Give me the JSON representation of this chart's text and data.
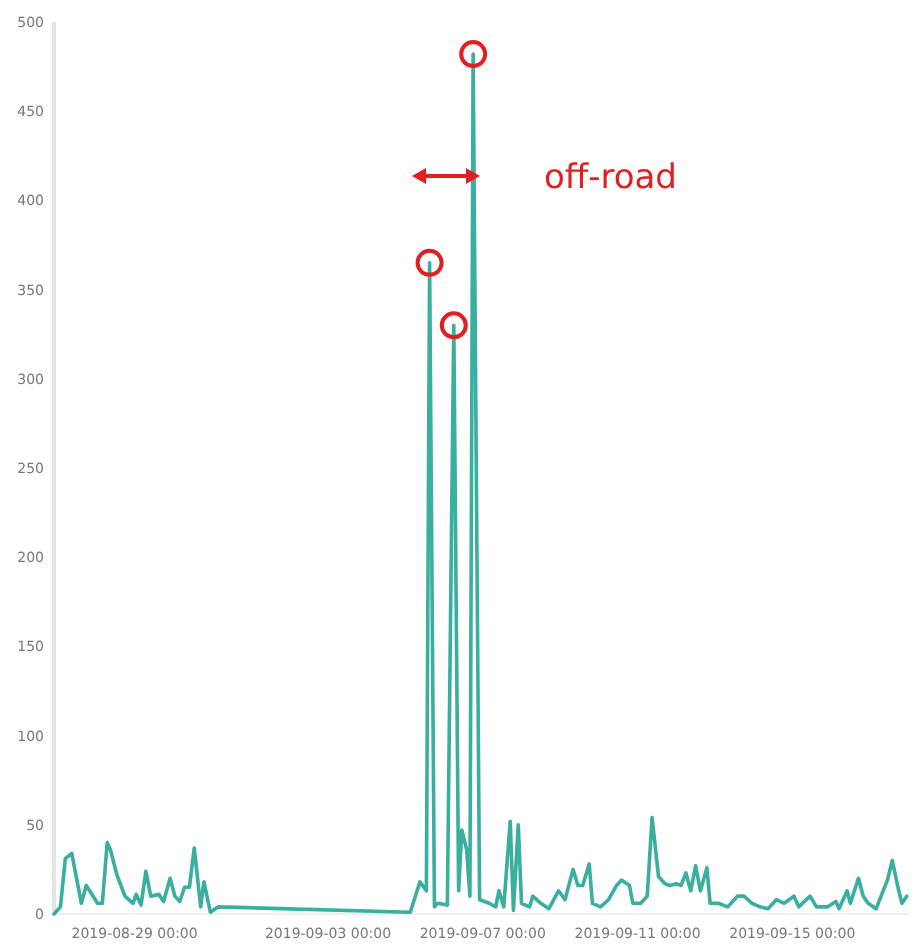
{
  "chart_data": {
    "type": "line",
    "x": [
      "2019-08-26T22:00",
      "2019-08-27T02:00",
      "2019-08-27T05:00",
      "2019-08-27T09:00",
      "2019-08-27T15:00",
      "2019-08-27T18:00",
      "2019-08-28T01:00",
      "2019-08-28T04:00",
      "2019-08-28T07:00",
      "2019-08-28T09:00",
      "2019-08-28T13:00",
      "2019-08-28T18:00",
      "2019-08-28T23:00",
      "2019-08-29T01:00",
      "2019-08-29T04:00",
      "2019-08-29T07:00",
      "2019-08-29T10:00",
      "2019-08-29T15:00",
      "2019-08-29T18:00",
      "2019-08-29T22:00",
      "2019-08-30T01:00",
      "2019-08-30T04:00",
      "2019-08-30T07:00",
      "2019-08-30T10:00",
      "2019-08-30T13:00",
      "2019-08-30T17:00",
      "2019-08-30T19:00",
      "2019-08-30T23:00",
      "2019-08-31T04:00",
      "2019-09-05T03:00",
      "2019-09-05T09:00",
      "2019-09-05T13:00",
      "2019-09-05T15:00",
      "2019-09-05T18:00",
      "2019-09-05T20:00",
      "2019-09-06T02:00",
      "2019-09-06T06:00",
      "2019-09-06T09:00",
      "2019-09-06T11:00",
      "2019-09-06T14:00",
      "2019-09-06T16:00",
      "2019-09-06T18:00",
      "2019-09-06T22:00",
      "2019-09-07T04:00",
      "2019-09-07T08:00",
      "2019-09-07T10:00",
      "2019-09-07T13:00",
      "2019-09-07T17:00",
      "2019-09-07T19:00",
      "2019-09-07T22:00",
      "2019-09-08T00:00",
      "2019-09-08T05:00",
      "2019-09-08T07:00",
      "2019-09-08T12:00",
      "2019-09-08T17:00",
      "2019-09-08T23:00",
      "2019-09-09T03:00",
      "2019-09-09T08:00",
      "2019-09-09T11:00",
      "2019-09-09T14:00",
      "2019-09-09T18:00",
      "2019-09-09T20:00",
      "2019-09-10T01:00",
      "2019-09-10T06:00",
      "2019-09-10T11:00",
      "2019-09-10T14:00",
      "2019-09-10T19:00",
      "2019-09-10T21:00",
      "2019-09-11T02:00",
      "2019-09-11T06:00",
      "2019-09-11T09:00",
      "2019-09-11T13:00",
      "2019-09-11T17:00",
      "2019-09-11T20:00",
      "2019-09-12T00:00",
      "2019-09-12T03:00",
      "2019-09-12T06:00",
      "2019-09-12T09:00",
      "2019-09-12T12:00",
      "2019-09-12T15:00",
      "2019-09-12T19:00",
      "2019-09-12T21:00",
      "2019-09-13T02:00",
      "2019-09-13T08:00",
      "2019-09-13T14:00",
      "2019-09-13T18:00",
      "2019-09-13T23:00",
      "2019-09-14T04:00",
      "2019-09-14T09:00",
      "2019-09-14T14:00",
      "2019-09-14T19:00",
      "2019-09-15T01:00",
      "2019-09-15T04:00",
      "2019-09-15T11:00",
      "2019-09-15T15:00",
      "2019-09-15T22:00",
      "2019-09-16T03:00",
      "2019-09-16T05:00",
      "2019-09-16T10:00",
      "2019-09-16T12:00",
      "2019-09-16T17:00",
      "2019-09-16T20:00",
      "2019-09-16T23:00",
      "2019-09-17T04:00",
      "2019-09-17T11:00",
      "2019-09-17T14:00",
      "2019-09-17T18:00",
      "2019-09-17T20:00",
      "2019-09-17T23:00"
    ],
    "series": [
      {
        "color": "#3aae9f",
        "values": [
          0,
          4,
          31,
          34,
          6,
          16,
          6,
          6,
          40,
          36,
          22,
          10,
          6,
          11,
          5,
          24,
          10,
          11,
          7,
          20,
          10,
          7,
          15,
          15,
          37,
          4,
          18,
          1,
          4,
          1,
          18,
          13,
          365,
          4,
          6,
          5,
          330,
          13,
          47,
          36,
          10,
          482,
          8,
          6,
          4,
          13,
          4,
          52,
          2,
          50,
          6,
          4,
          10,
          6,
          3,
          13,
          8,
          25,
          16,
          16,
          28,
          6,
          4,
          8,
          16,
          19,
          16,
          6,
          6,
          10,
          54,
          21,
          17,
          16,
          17,
          16,
          23,
          13,
          27,
          13,
          26,
          6,
          6,
          4,
          10,
          10,
          6,
          4,
          3,
          8,
          6,
          10,
          4,
          10,
          4,
          4,
          7,
          3,
          13,
          6,
          20,
          10,
          6,
          3,
          19,
          30,
          13,
          6,
          10
        ]
      }
    ],
    "xlim": [
      "2019-08-26T22:00",
      "2019-09-18T01:00"
    ],
    "xticks": [
      {
        "value": "2019-08-29",
        "label": "2019-08-29 00:00"
      },
      {
        "value": "2019-09-03",
        "label": "2019-09-03 00:00"
      },
      {
        "value": "2019-09-07",
        "label": "2019-09-07 00:00"
      },
      {
        "value": "2019-09-11",
        "label": "2019-09-11 00:00"
      },
      {
        "value": "2019-09-15",
        "label": "2019-09-15 00:00"
      }
    ],
    "ylim": [
      0,
      500
    ],
    "yticks": [
      0,
      50,
      100,
      150,
      200,
      250,
      300,
      350,
      400,
      450,
      500
    ],
    "annotations": [
      "off-road"
    ],
    "line_style": "solid",
    "marker": "none"
  }
}
